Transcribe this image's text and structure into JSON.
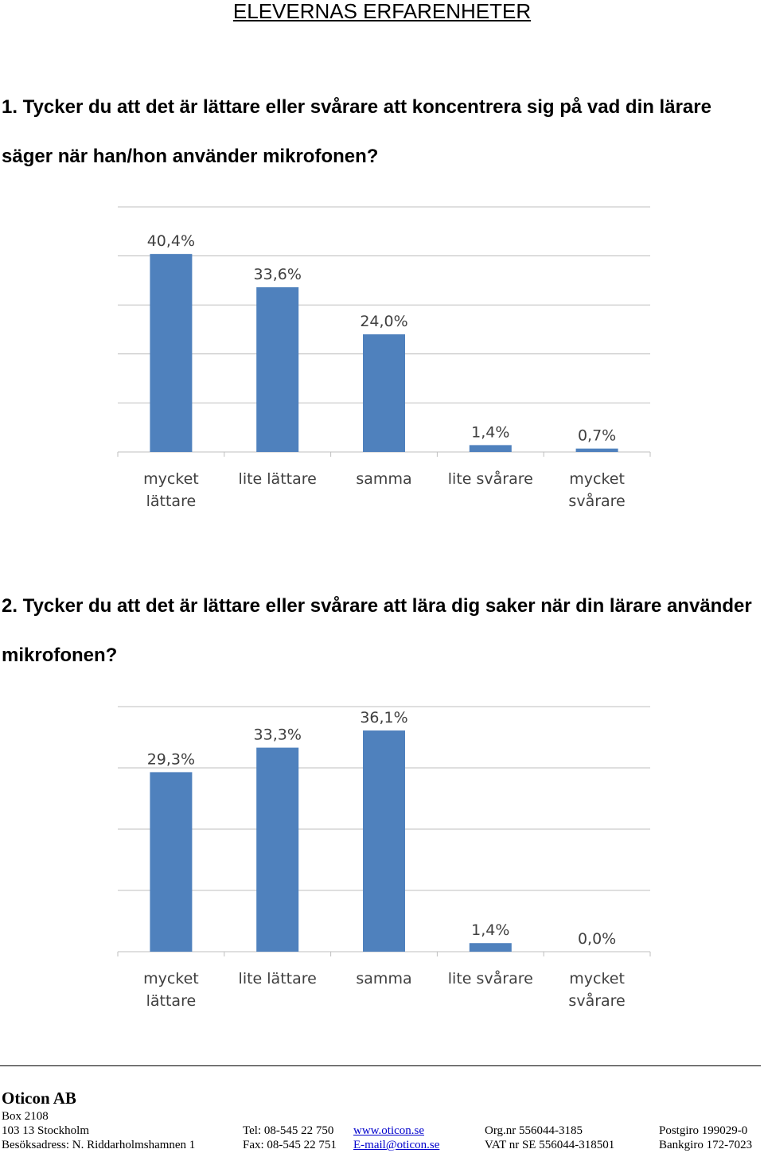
{
  "page": {
    "heading": "ELEVERNAS ERFARENHETER"
  },
  "questions": [
    {
      "text": "1. Tycker du att det är lättare eller svårare att koncentrera sig på vad din lärare säger när han/hon använder mikrofonen?"
    },
    {
      "text": "2. Tycker du att det är lättare eller svårare att lära dig saker när din lärare använder mikrofonen?"
    }
  ],
  "chart_data": [
    {
      "type": "bar",
      "categories": [
        [
          "mycket",
          "lättare"
        ],
        [
          "lite lättare"
        ],
        [
          "samma"
        ],
        [
          "lite svårare"
        ],
        [
          "mycket",
          "svårare"
        ]
      ],
      "values": [
        40.4,
        33.6,
        24.0,
        1.4,
        0.7
      ],
      "data_labels": [
        "40,4%",
        "33,6%",
        "24,0%",
        "1,4%",
        "0,7%"
      ],
      "ylim": [
        0,
        50
      ],
      "gridlines": true,
      "bar_color": "#4f81bd",
      "title": "",
      "xlabel": "",
      "ylabel": ""
    },
    {
      "type": "bar",
      "categories": [
        [
          "mycket",
          "lättare"
        ],
        [
          "lite lättare"
        ],
        [
          "samma"
        ],
        [
          "lite svårare"
        ],
        [
          "mycket",
          "svårare"
        ]
      ],
      "values": [
        29.3,
        33.3,
        36.1,
        1.4,
        0.0
      ],
      "data_labels": [
        "29,3%",
        "33,3%",
        "36,1%",
        "1,4%",
        "0,0%"
      ],
      "ylim": [
        0,
        40
      ],
      "gridlines": true,
      "bar_color": "#4f81bd",
      "title": "",
      "xlabel": "",
      "ylabel": ""
    }
  ],
  "footer": {
    "company": "Oticon AB",
    "box": "Box 2108",
    "rows": [
      {
        "c1": "103 13 Stockholm",
        "c2": "Tel:  08-545 22 750",
        "c3": "www.oticon.se",
        "c4": "Org.nr 556044-3185",
        "c5": "Postgiro  199029-0"
      },
      {
        "c1": "Besöksadress: N. Riddarholmshamnen 1",
        "c2": "Fax: 08-545 22 751",
        "c3": "E-mail@oticon.se",
        "c4": "VAT nr SE 556044-318501",
        "c5": "Bankgiro 172-7023"
      }
    ]
  }
}
